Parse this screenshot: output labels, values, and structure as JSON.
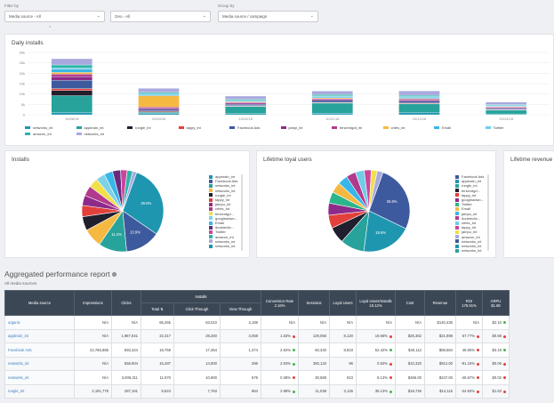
{
  "filters": {
    "filter_by_label": "Filter by",
    "media_source": "Media source - All",
    "geo": "Geo - All",
    "group_by_label": "Group by",
    "group_by": "Media source / campaign"
  },
  "daily_installs": {
    "title": "Daily installs",
    "chart_data": {
      "type": "bar",
      "stacked": true,
      "categories": [
        "10/08/18",
        "10/09/18",
        "10/10/18",
        "10/11/18",
        "10/12/18",
        "10/13/18"
      ],
      "ylim": [
        0,
        30000
      ],
      "yticks": [
        "30k",
        "25k",
        "20k",
        "15k",
        "10k",
        "5k",
        "0"
      ],
      "series": [
        {
          "name": "networks_int",
          "color": "#1f96b0",
          "values": [
            1200,
            700,
            500,
            800,
            1200,
            400
          ]
        },
        {
          "name": "appbrain_int",
          "color": "#27a39b",
          "values": [
            8000,
            500,
            3500,
            4800,
            4000,
            1800
          ]
        },
        {
          "name": "rungle_int",
          "color": "#1f1f2e",
          "values": [
            2500,
            300,
            200,
            200,
            200,
            100
          ]
        },
        {
          "name": "tappy_int",
          "color": "#e2413b",
          "values": [
            900,
            300,
            200,
            200,
            300,
            200
          ]
        },
        {
          "name": "Facebook Ads",
          "color": "#3d5a9e",
          "values": [
            4000,
            800,
            700,
            900,
            800,
            500
          ]
        },
        {
          "name": "jampi_int",
          "color": "#8e2b8a",
          "values": [
            1800,
            600,
            500,
            500,
            600,
            400
          ]
        },
        {
          "name": "tencentgdt_int",
          "color": "#b23a8c",
          "values": [
            1200,
            500,
            400,
            400,
            500,
            300
          ]
        },
        {
          "name": "crites_int",
          "color": "#f5b942",
          "values": [
            800,
            5500,
            300,
            400,
            300,
            200
          ]
        },
        {
          "name": "Email",
          "color": "#38b6e8",
          "values": [
            1500,
            600,
            400,
            500,
            500,
            300
          ]
        },
        {
          "name": "Twitter",
          "color": "#6fcde8",
          "values": [
            600,
            500,
            300,
            400,
            400,
            300
          ]
        },
        {
          "name": "amazon_int",
          "color": "#2bb5a8",
          "values": [
            1500,
            600,
            500,
            600,
            600,
            400
          ]
        },
        {
          "name": "networks_int",
          "color": "#a9a9df",
          "values": [
            3000,
            1800,
            1500,
            1700,
            2100,
            1200
          ]
        }
      ]
    },
    "legend": [
      "networks_int",
      "appbrain_int",
      "rungle_int",
      "tappy_int",
      "Facebook Ads",
      "jampi_int",
      "tencentgdt_int",
      "crites_int",
      "Email",
      "Twitter",
      "amazon_int",
      "networks_int"
    ]
  },
  "installs_pie": {
    "title": "Installs",
    "chart_data": {
      "type": "pie",
      "slices": [
        {
          "label": "appbrain_int",
          "value": 29.0,
          "color": "#1f96b0",
          "text": "29.0%"
        },
        {
          "label": "Facebook Ads",
          "value": 13.9,
          "color": "#3d5a9e",
          "text": "13.9%"
        },
        {
          "label": "networks_int",
          "value": 11.2,
          "color": "#27a39b",
          "text": "11.2%"
        },
        {
          "label": "networks_int",
          "value": 7.5,
          "color": "#f5b942",
          "text": ""
        },
        {
          "label": "rungle_int",
          "value": 5.5,
          "color": "#1f1f2e",
          "text": ""
        },
        {
          "label": "tappy_int",
          "value": 4.5,
          "color": "#e2413b",
          "text": ""
        },
        {
          "label": "jampu_int",
          "value": 4.0,
          "color": "#8e2b8a",
          "text": ""
        },
        {
          "label": "crites_int",
          "value": 4.0,
          "color": "#b23a8c",
          "text": ""
        },
        {
          "label": "tencentgd...",
          "value": 3.8,
          "color": "#f0e04a",
          "text": ""
        },
        {
          "label": "googleadwo...",
          "value": 3.6,
          "color": "#7ed1e6",
          "text": ""
        },
        {
          "label": "Email",
          "value": 3.4,
          "color": "#38b6e8",
          "text": ""
        },
        {
          "label": "doubleclic...",
          "value": 3.2,
          "color": "#6a2b7e",
          "text": ""
        },
        {
          "label": "Twitter",
          "value": 2.6,
          "color": "#c9469a",
          "text": ""
        },
        {
          "label": "amazon_int",
          "value": 2.2,
          "color": "#2bb5a8",
          "text": ""
        },
        {
          "label": "networks_int",
          "value": 1.6,
          "color": "#a9a9df",
          "text": ""
        }
      ]
    },
    "legend": [
      "appbrain_int",
      "Facebook Ads",
      "networks_int",
      "networks_int",
      "rungle_int",
      "tappy_int",
      "jampu_int",
      "crites_int",
      "tencentgd...",
      "googleadwo...",
      "Email",
      "doubleclic...",
      "Twitter",
      "amazon_int",
      "networks_int",
      "networks_int"
    ]
  },
  "loyal_pie": {
    "title": "Lifetime loyal users",
    "chart_data": {
      "type": "pie",
      "slices": [
        {
          "label": "Facebook Ads",
          "value": 26.6,
          "color": "#3d5a9e",
          "text": "26.6%"
        },
        {
          "label": "appbrain_int",
          "value": 19.9,
          "color": "#1f96b0",
          "text": "19.9%"
        },
        {
          "label": "networks_int",
          "value": 9.5,
          "color": "#27a39b",
          "text": ""
        },
        {
          "label": "rungle_int",
          "value": 6.5,
          "color": "#1f1f2e",
          "text": ""
        },
        {
          "label": "tencentgd...",
          "value": 5.2,
          "color": "#e2413b",
          "text": ""
        },
        {
          "label": "tappy_int",
          "value": 4.8,
          "color": "#8e2b8a",
          "text": ""
        },
        {
          "label": "googleadwo...",
          "value": 4.5,
          "color": "#2bb58a",
          "text": ""
        },
        {
          "label": "Twitter",
          "value": 4.2,
          "color": "#f5b942",
          "text": ""
        },
        {
          "label": "Email",
          "value": 4.0,
          "color": "#38b6e8",
          "text": ""
        },
        {
          "label": "jampu_int",
          "value": 3.8,
          "color": "#b23a8c",
          "text": ""
        },
        {
          "label": "doubleclic...",
          "value": 3.5,
          "color": "#6fcde8",
          "text": ""
        },
        {
          "label": "crites_int",
          "value": 2.8,
          "color": "#c9469a",
          "text": ""
        },
        {
          "label": "tappy_int",
          "value": 2.4,
          "color": "#f0e04a",
          "text": ""
        },
        {
          "label": "amazon_int",
          "value": 2.3,
          "color": "#a9a9df",
          "text": ""
        }
      ]
    },
    "legend": [
      "Facebook Ads",
      "appbrain_int",
      "rungle_int",
      "tencentgd...",
      "tappy_int",
      "googleadwo...",
      "Twitter",
      "Email",
      "jampu_int",
      "doubleclic...",
      "crites_int",
      "tappy_int",
      "jampu_int",
      "amazon_int",
      "networks_int",
      "networks_int",
      "networks_int"
    ]
  },
  "lifetime_revenue": {
    "title": "Lifetime revenue"
  },
  "report": {
    "title": "Aggregated performance report",
    "subtitle": "All media sources",
    "headers": {
      "media_source": "Media source",
      "impressions": "Impressions",
      "clicks": "Clicks",
      "installs": "Installs",
      "total": "Total",
      "click_through": "Click Through",
      "view_through": "View Through",
      "conversion_rate": "Conversion Rate",
      "conversion_rate_sub": "2.16%",
      "sessions": "Sessions",
      "loyal_users": "Loyal Users",
      "loyal_ratio": "Loyal Users/Installs",
      "loyal_ratio_sub": "18.12%",
      "cost": "Cost",
      "revenue": "Revenue",
      "roi": "ROI",
      "roi_sub": "179.91%",
      "arpu": "ARPU",
      "arpu_sub": "$1.88"
    },
    "rows": [
      {
        "source": "organic",
        "impressions": "N/A",
        "clicks": "N/A",
        "total": "66,265",
        "click_through": "63,010",
        "view_through": "3,189",
        "conv": "N/A",
        "conv_dot": "",
        "sessions": "N/A",
        "loyal": "N/A",
        "ratio": "N/A",
        "ratio_dot": "",
        "cost": "N/A",
        "revenue": "$140,435",
        "roi": "N/A",
        "roi_dot": "",
        "arpu": "$2.10",
        "arpu_dot": "g"
      },
      {
        "source": "appbrain_int",
        "impressions": "N/A",
        "clicks": "1,987,641",
        "total": "32,317",
        "click_through": "28,260",
        "view_through": "3,058",
        "conv": "1.63%",
        "conv_dot": "r",
        "sessions": "129,066",
        "loyal": "8,120",
        "ratio": "19.66%",
        "ratio_dot": "r",
        "cost": "$26,362",
        "revenue": "$21,898",
        "roi": "57.77%",
        "roi_dot": "r",
        "arpu": "$0.68",
        "arpu_dot": "r"
      },
      {
        "source": "Facebook Ads",
        "impressions": "22,765,865",
        "clicks": "693,324",
        "total": "18,759",
        "click_through": "17,364",
        "view_through": "1,374",
        "conv": "2.84%",
        "conv_dot": "g",
        "sessions": "60,340",
        "loyal": "8,823",
        "ratio": "52.42%",
        "ratio_dot": "g",
        "cost": "$40,112",
        "revenue": "$58,684",
        "roi": "48.65%",
        "roi_dot": "r",
        "arpu": "$3.19",
        "arpu_dot": "g"
      },
      {
        "source": "networks_int",
        "impressions": "N/A",
        "clicks": "558,904",
        "total": "15,287",
        "click_through": "14,900",
        "view_through": "396",
        "conv": "2.93%",
        "conv_dot": "g",
        "sessions": "350,133",
        "loyal": "96",
        "ratio": "0.63%",
        "ratio_dot": "r",
        "cost": "$10,320",
        "revenue": "$912.00",
        "roi": "-91.16%",
        "roi_dot": "r",
        "arpu": "$0.06",
        "arpu_dot": "r"
      },
      {
        "source": "networks_int",
        "impressions": "N/A",
        "clicks": "3,008,311",
        "total": "11,570",
        "click_through": "10,900",
        "view_through": "676",
        "conv": "0.38%",
        "conv_dot": "r",
        "sessions": "30,588",
        "loyal": "923",
        "ratio": "8.13%",
        "ratio_dot": "r",
        "cost": "$466.00",
        "revenue": "$247.00",
        "roi": "-46.67%",
        "roi_dot": "r",
        "arpu": "$0.02",
        "arpu_dot": "r"
      },
      {
        "source": "rungle_int",
        "impressions": "2,181,778",
        "clicks": "287,161",
        "total": "8,624",
        "click_through": "7,763",
        "view_through": "864",
        "conv": "2.98%",
        "conv_dot": "g",
        "sessions": "11,038",
        "loyal": "3,126",
        "ratio": "38.13%",
        "ratio_dot": "g",
        "cost": "$18,726",
        "revenue": "$14,115",
        "roi": "-24.63%",
        "roi_dot": "r",
        "arpu": "$1.63",
        "arpu_dot": "r"
      }
    ]
  }
}
